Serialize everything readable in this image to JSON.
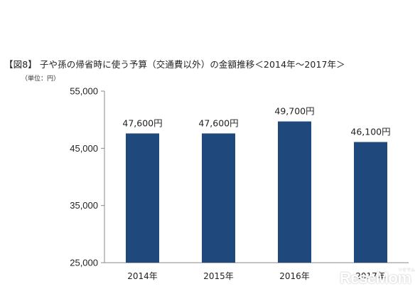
{
  "title": "【図8】 子や孫の帰省時に使う予算（交通費以外）の金額推移＜2014年～2017年＞",
  "unit_label": "（単位：円）",
  "watermark": {
    "text": "ReseMom",
    "sub": "リセマム"
  },
  "colors": {
    "bar": "#1f497d",
    "axis": "#888888"
  },
  "chart_data": {
    "type": "bar",
    "categories": [
      "2014年",
      "2015年",
      "2016年",
      "2017年"
    ],
    "values": [
      47600,
      47600,
      49700,
      46100
    ],
    "data_labels": [
      "47,600円",
      "47,600円",
      "49,700円",
      "46,100円"
    ],
    "yticks": [
      25000,
      35000,
      45000,
      55000
    ],
    "ytick_labels": [
      "25,000",
      "35,000",
      "45,000",
      "55,000"
    ],
    "ylim": [
      25000,
      55000
    ],
    "grid": false,
    "legend": "none"
  }
}
